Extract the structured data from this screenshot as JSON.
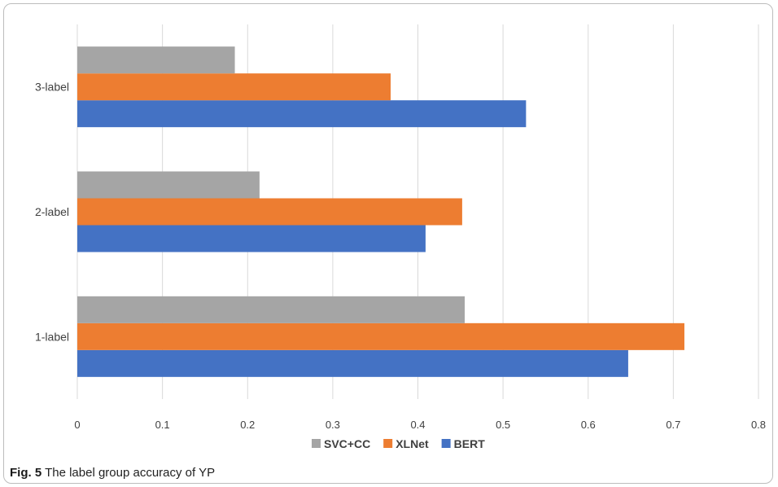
{
  "chart_data": {
    "type": "bar",
    "orientation": "horizontal",
    "categories": [
      "1-label",
      "2-label",
      "3-label"
    ],
    "series": [
      {
        "name": "BERT",
        "color": "#4472C4",
        "values": [
          0.647,
          0.409,
          0.527
        ]
      },
      {
        "name": "XLNet",
        "color": "#ED7D31",
        "values": [
          0.713,
          0.452,
          0.368
        ]
      },
      {
        "name": "SVC+CC",
        "color": "#A5A5A5",
        "values": [
          0.455,
          0.214,
          0.185
        ]
      }
    ],
    "xlim": [
      0,
      0.8
    ],
    "xticks": [
      "0",
      "0.1",
      "0.2",
      "0.3",
      "0.4",
      "0.5",
      "0.6",
      "0.7",
      "0.8"
    ],
    "grid": "vertical",
    "legend": {
      "position": "bottom",
      "order": [
        "SVC+CC",
        "XLNet",
        "BERT"
      ]
    }
  },
  "caption": {
    "label": "Fig. 5",
    "text": "The label group accuracy of YP"
  }
}
